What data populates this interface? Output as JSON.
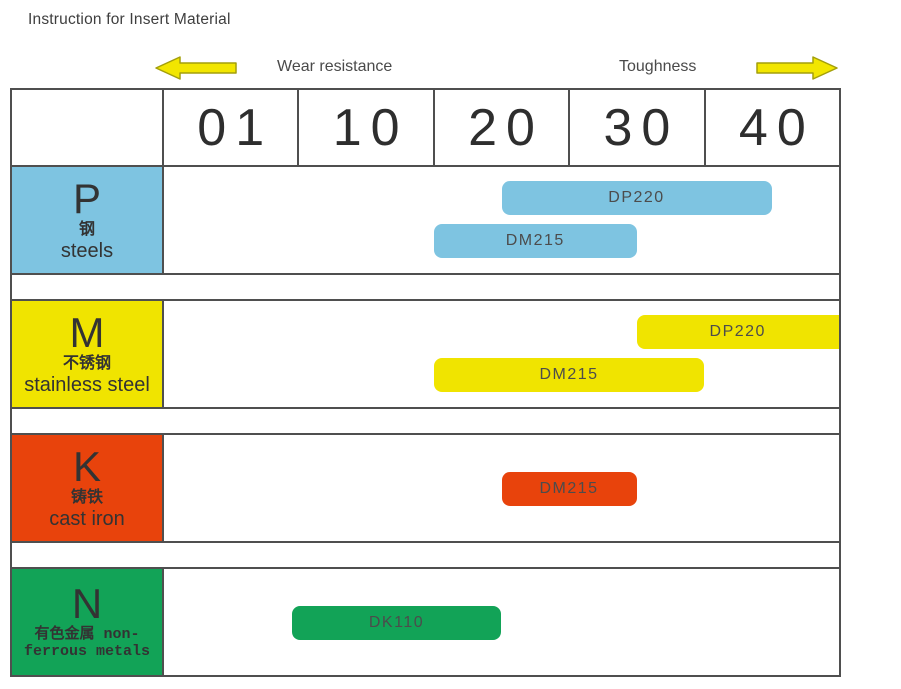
{
  "page": {
    "title": "Instruction for Insert Material"
  },
  "axis": {
    "left_label": "Wear resistance",
    "right_label": "Toughness"
  },
  "palette": {
    "steel_blue": "#7EC4E1",
    "stainless_yellow": "#F0E400",
    "cast_iron_red": "#E8430C",
    "nonferrous_green": "#12A357",
    "grid_border": "#4f4f4f",
    "text_dark": "#333333",
    "bar_text": "#4c4c4c",
    "arrow_fill": "#F2E600",
    "arrow_stroke": "#A39F0B"
  },
  "chart_data": {
    "type": "bar",
    "subtype": "grade-application-range",
    "title": "Instruction for Insert Material",
    "x_axis": {
      "ticks": [
        "01",
        "10",
        "20",
        "30",
        "40"
      ],
      "tick_values": [
        1,
        10,
        20,
        30,
        40
      ],
      "left_label": "Wear resistance",
      "right_label": "Toughness",
      "range": [
        0,
        45
      ],
      "grid": false
    },
    "legend_position": "none",
    "rows": [
      {
        "iso_class": "P",
        "material_cn": "钢",
        "material_en": "steels",
        "color": "#7EC4E1",
        "bars": [
          {
            "grade": "DP220",
            "start": 20,
            "end": 40
          },
          {
            "grade": "DM215",
            "start": 15,
            "end": 30
          }
        ]
      },
      {
        "iso_class": "M",
        "material_cn": "不锈钢",
        "material_en": "stainless steel",
        "color": "#F0E400",
        "bars": [
          {
            "grade": "DP220",
            "start": 30,
            "end": 45
          },
          {
            "grade": "DM215",
            "start": 15,
            "end": 35
          }
        ]
      },
      {
        "iso_class": "K",
        "material_cn": "铸铁",
        "material_en": "cast iron",
        "color": "#E8430C",
        "bars": [
          {
            "grade": "DM215",
            "start": 20,
            "end": 30
          }
        ]
      },
      {
        "iso_class": "N",
        "material_cn": "有色金属",
        "material_en": "non-ferrous metals",
        "label_lines": [
          "有色金属 non-",
          "ferrous metals"
        ],
        "color": "#12A357",
        "bars": [
          {
            "grade": "DK110",
            "start": 5,
            "end": 20
          }
        ]
      }
    ]
  }
}
